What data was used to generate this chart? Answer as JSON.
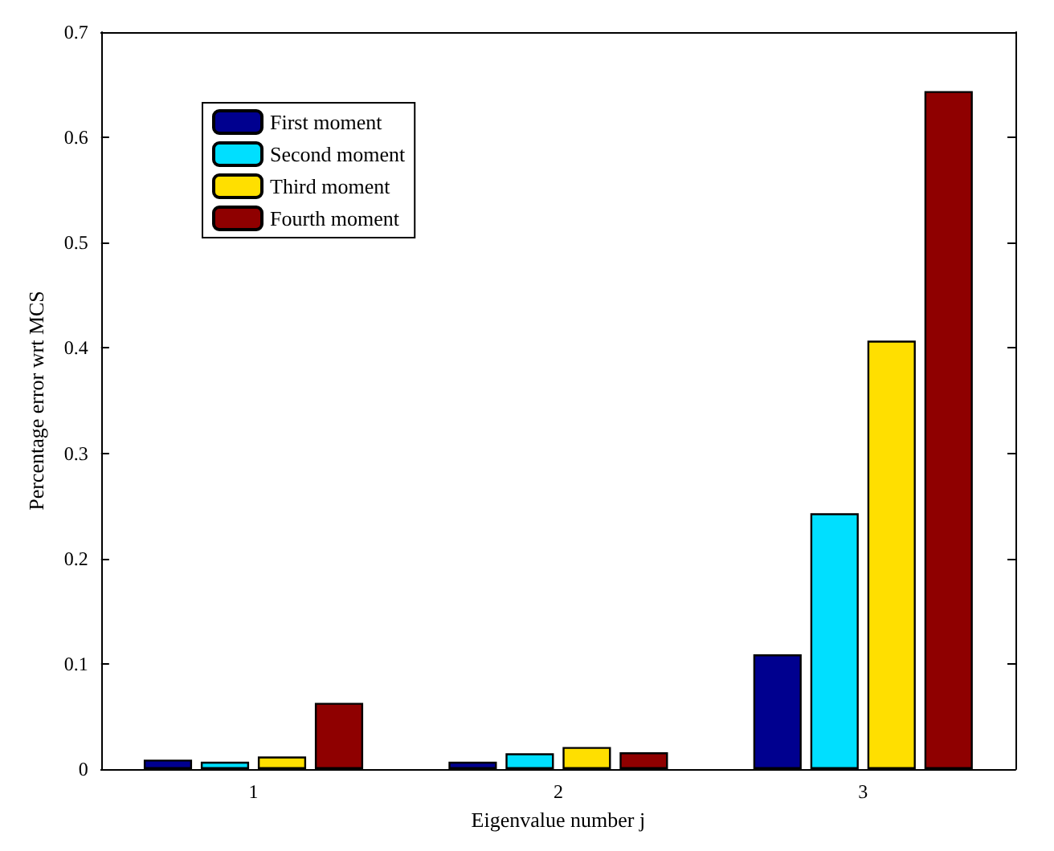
{
  "chart_data": {
    "type": "bar",
    "xlabel": "Eigenvalue number j",
    "ylabel": "Percentage error wrt MCS",
    "categories": [
      "1",
      "2",
      "3"
    ],
    "series": [
      {
        "name": "First moment",
        "color": "#00008f",
        "values": [
          0.009,
          0.007,
          0.109
        ]
      },
      {
        "name": "Second moment",
        "color": "#00dfff",
        "values": [
          0.007,
          0.015,
          0.243
        ]
      },
      {
        "name": "Third moment",
        "color": "#ffdf00",
        "values": [
          0.012,
          0.021,
          0.407
        ]
      },
      {
        "name": "Fourth moment",
        "color": "#8f0000",
        "values": [
          0.063,
          0.016,
          0.644
        ]
      }
    ],
    "ylim": [
      0,
      0.7
    ],
    "yticks": [
      0,
      0.1,
      0.2,
      0.3,
      0.4,
      0.5,
      0.6,
      0.7
    ],
    "grid": false,
    "legend": "top left"
  }
}
